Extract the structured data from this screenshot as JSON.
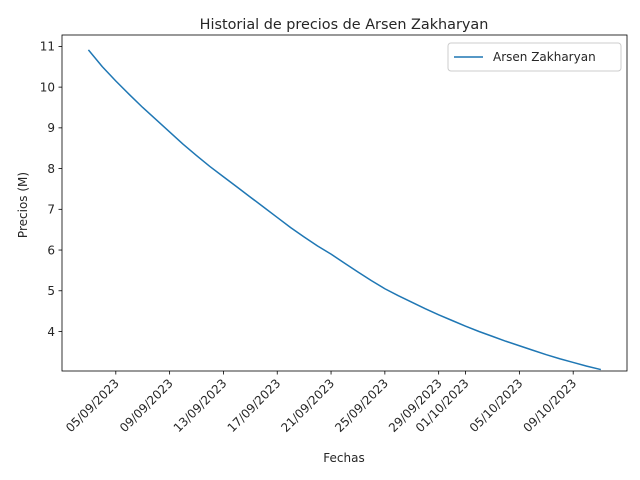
{
  "chart_data": {
    "type": "line",
    "title": "Historial de precios de Arsen Zakharyan",
    "xlabel": "Fechas",
    "ylabel": "Precios (M)",
    "x_ticks": [
      "05/09/2023",
      "09/09/2023",
      "13/09/2023",
      "17/09/2023",
      "21/09/2023",
      "25/09/2023",
      "29/09/2023",
      "01/10/2023",
      "05/10/2023",
      "09/10/2023"
    ],
    "y_ticks": [
      4,
      5,
      6,
      7,
      8,
      9,
      10,
      11
    ],
    "xlim": [
      "2023-09-01",
      "2023-10-13"
    ],
    "ylim": [
      3.03,
      11.28
    ],
    "legend": "top-right",
    "grid": false,
    "colors": {
      "line": "#1f77b4",
      "axes": "#000000",
      "text": "#262626",
      "background": "#ffffff"
    },
    "series": [
      {
        "name": "Arsen Zakharyan",
        "x": [
          "2023-09-03",
          "2023-09-04",
          "2023-09-05",
          "2023-09-06",
          "2023-09-07",
          "2023-09-08",
          "2023-09-09",
          "2023-09-10",
          "2023-09-11",
          "2023-09-12",
          "2023-09-13",
          "2023-09-14",
          "2023-09-15",
          "2023-09-16",
          "2023-09-17",
          "2023-09-18",
          "2023-09-19",
          "2023-09-20",
          "2023-09-21",
          "2023-09-22",
          "2023-09-23",
          "2023-09-24",
          "2023-09-25",
          "2023-09-26",
          "2023-09-27",
          "2023-09-28",
          "2023-09-29",
          "2023-09-30",
          "2023-10-01",
          "2023-10-02",
          "2023-10-03",
          "2023-10-04",
          "2023-10-05",
          "2023-10-06",
          "2023-10-07",
          "2023-10-08",
          "2023-10-09",
          "2023-10-10",
          "2023-10-11"
        ],
        "y": [
          10.9,
          10.5,
          10.15,
          9.82,
          9.5,
          9.2,
          8.9,
          8.6,
          8.32,
          8.05,
          7.8,
          7.55,
          7.3,
          7.05,
          6.8,
          6.55,
          6.32,
          6.1,
          5.9,
          5.68,
          5.46,
          5.25,
          5.05,
          4.88,
          4.72,
          4.56,
          4.41,
          4.27,
          4.13,
          4.0,
          3.88,
          3.76,
          3.65,
          3.54,
          3.43,
          3.33,
          3.24,
          3.15,
          3.07
        ]
      }
    ]
  }
}
